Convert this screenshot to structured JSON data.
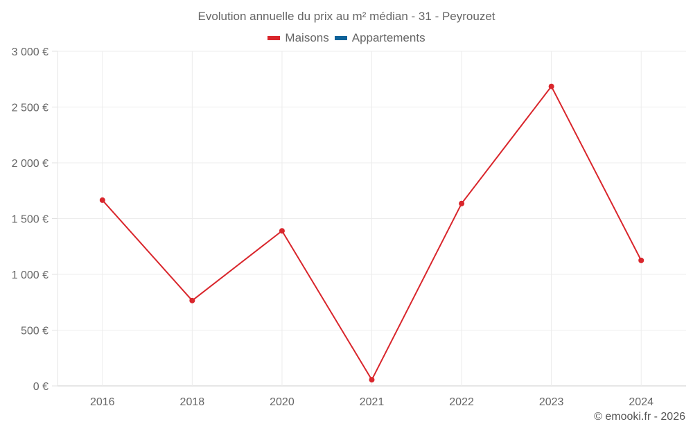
{
  "title": "Evolution annuelle du prix au m² médian - 31 - Peyrouzet",
  "legend": [
    {
      "label": "Maisons",
      "color": "#d9262c"
    },
    {
      "label": "Appartements",
      "color": "#0e6299"
    }
  ],
  "credit": "© emooki.fr - 2026",
  "chart_data": {
    "type": "line",
    "title": "Evolution annuelle du prix au m² médian - 31 - Peyrouzet",
    "xlabel": "",
    "ylabel": "",
    "categories": [
      "2016",
      "2018",
      "2020",
      "2021",
      "2022",
      "2023",
      "2024"
    ],
    "series": [
      {
        "name": "Maisons",
        "color": "#d9262c",
        "values": [
          1665,
          765,
          1390,
          55,
          1635,
          2685,
          1125
        ]
      },
      {
        "name": "Appartements",
        "color": "#0e6299",
        "values": []
      }
    ],
    "ylim": [
      0,
      3000
    ],
    "yticks": [
      0,
      500,
      1000,
      1500,
      2000,
      2500,
      3000
    ],
    "ytick_labels": [
      "0 €",
      "500 €",
      "1 000 €",
      "1 500 €",
      "2 000 €",
      "2 500 €",
      "3 000 €"
    ],
    "grid": true,
    "legend_position": "top"
  }
}
